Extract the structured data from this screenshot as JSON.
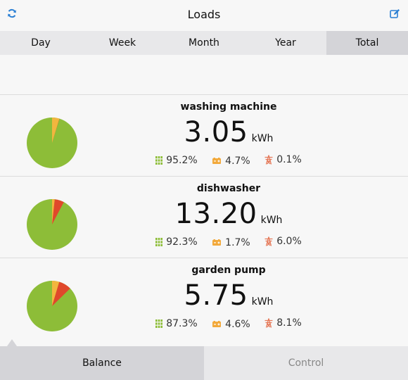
{
  "header": {
    "title": "Loads",
    "left_icon": "refresh-icon",
    "right_icon": "edit-icon",
    "accent": "#2a7fd4"
  },
  "tabs": [
    {
      "label": "Day"
    },
    {
      "label": "Week"
    },
    {
      "label": "Month"
    },
    {
      "label": "Year"
    },
    {
      "label": "Total",
      "active": true
    }
  ],
  "colors": {
    "solar": "#8dbd38",
    "battery": "#f2b63e",
    "grid": "#e0482b",
    "solar_icon": "#8dbd38",
    "battery_icon": "#f2a93b",
    "grid_icon": "#e57a5a"
  },
  "loads": [
    {
      "name": "washing machine",
      "value": "3.05",
      "unit": "kWh",
      "solar": "95.2%",
      "battery": "4.7%",
      "grid": "0.1%",
      "fractions": {
        "solar": 0.952,
        "battery": 0.047,
        "grid": 0.001
      }
    },
    {
      "name": "dishwasher",
      "value": "13.20",
      "unit": "kWh",
      "solar": "92.3%",
      "battery": "1.7%",
      "grid": "6.0%",
      "fractions": {
        "solar": 0.923,
        "battery": 0.017,
        "grid": 0.06
      }
    },
    {
      "name": "garden pump",
      "value": "5.75",
      "unit": "kWh",
      "solar": "87.3%",
      "battery": "4.6%",
      "grid": "8.1%",
      "fractions": {
        "solar": 0.873,
        "battery": 0.046,
        "grid": 0.081
      }
    }
  ],
  "bottom_tabs": {
    "balance": "Balance",
    "control": "Control"
  }
}
